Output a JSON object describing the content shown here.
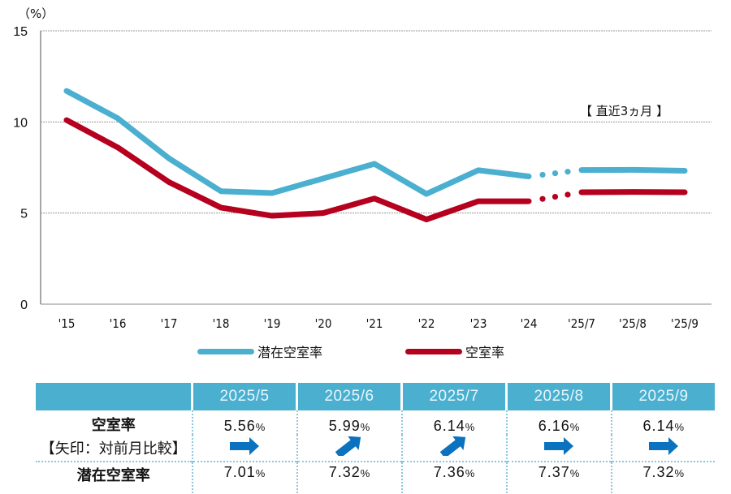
{
  "chart_data": {
    "type": "line",
    "unit_label": "（%）",
    "note": "【 直近3ヵ月 】",
    "categories": [
      "'15",
      "'16",
      "'17",
      "'18",
      "'19",
      "'20",
      "'21",
      "'22",
      "'23",
      "'24",
      "'25/7",
      "'25/8",
      "'25/9"
    ],
    "ylim": [
      0,
      15
    ],
    "yticks": [
      0,
      5,
      10,
      15
    ],
    "grid": true,
    "legend_position": "bottom",
    "series": [
      {
        "name": "潜在空室率",
        "color": "#4bafd0",
        "values": [
          11.7,
          10.2,
          8.0,
          6.2,
          6.1,
          6.9,
          7.7,
          6.05,
          7.35,
          7.01,
          7.36,
          7.37,
          7.32
        ]
      },
      {
        "name": "空室率",
        "color": "#b5001e",
        "values": [
          10.1,
          8.6,
          6.7,
          5.3,
          4.85,
          5.0,
          5.8,
          4.65,
          5.65,
          5.65,
          6.14,
          6.16,
          6.14
        ]
      }
    ],
    "gap_after_index": 9
  },
  "table": {
    "columns": [
      "2025/5",
      "2025/6",
      "2025/7",
      "2025/8",
      "2025/9"
    ],
    "row_vacancy_label": "空室率",
    "row_arrow_label": "【矢印：対前月比較】",
    "row_potential_label": "潜在空室率",
    "percent_sign": "%",
    "vacancy": [
      "5.56",
      "5.99",
      "6.14",
      "6.16",
      "6.14"
    ],
    "arrows": [
      "right",
      "up-right",
      "up-right",
      "right",
      "right"
    ],
    "potential": [
      "7.01",
      "7.32",
      "7.36",
      "7.37",
      "7.32"
    ],
    "header_color": "#4bafd0",
    "arrow_color": "#0a72bf"
  }
}
